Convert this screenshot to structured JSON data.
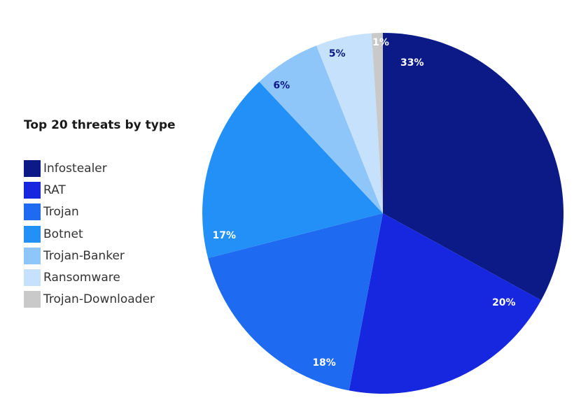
{
  "chart_data": {
    "type": "pie",
    "title": "Top 20 threats by type",
    "legend_position": "left",
    "start": "top, clockwise",
    "slices": [
      {
        "label": "Infostealer",
        "value": 33,
        "data_label": "33%",
        "color": "#0b1a87",
        "label_color": "#ffffff"
      },
      {
        "label": "RAT",
        "value": 20,
        "data_label": "20%",
        "color": "#1627df",
        "label_color": "#ffffff"
      },
      {
        "label": "Trojan",
        "value": 18,
        "data_label": "18%",
        "color": "#1e6af0",
        "label_color": "#ffffff"
      },
      {
        "label": "Botnet",
        "value": 17,
        "data_label": "17%",
        "color": "#2290f6",
        "label_color": "#ffffff"
      },
      {
        "label": "Trojan-Banker",
        "value": 6,
        "data_label": "6%",
        "color": "#8fc6f9",
        "label_color": "#0b1a87"
      },
      {
        "label": "Ransomware",
        "value": 5,
        "data_label": "5%",
        "color": "#c6e1fb",
        "label_color": "#0b1a87"
      },
      {
        "label": "Trojan-Downloader",
        "value": 1,
        "data_label": "1%",
        "color": "#c9c9c9",
        "label_color": "#ffffff"
      }
    ]
  }
}
